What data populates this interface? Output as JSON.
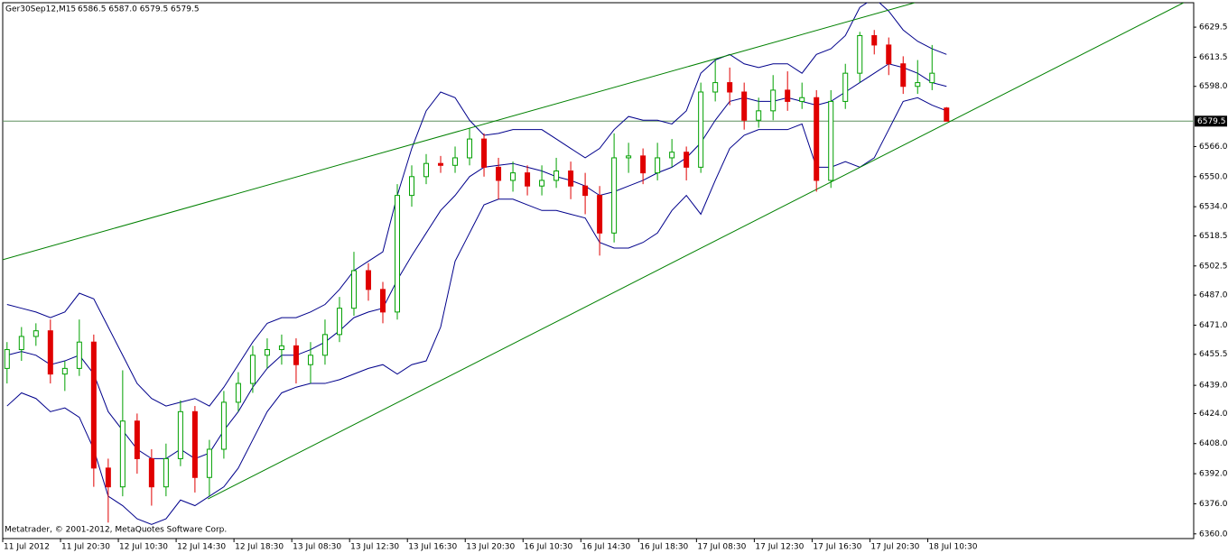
{
  "chart_data": {
    "type": "candlestick",
    "symbol": "Ger30Sep12,M15",
    "quote": "6586.5 6587.0 6579.5 6579.5",
    "footer": "Metatrader, © 2001-2012, MetaQuotes Software Corp.",
    "xlim": [
      -0.3,
      82.1
    ],
    "ylim": [
      6357.5,
      6642.5
    ],
    "open": [
      6448,
      6458,
      6465,
      6468,
      6445,
      6448,
      6462,
      6395,
      6385,
      6420,
      6400,
      6385,
      6400,
      6425,
      6390,
      6405,
      6430,
      6440,
      6455,
      6458,
      6460,
      6450,
      6455,
      6466,
      6480,
      6500,
      6490,
      6478,
      6540,
      6550,
      6557,
      6556,
      6560,
      6570,
      6555,
      6548,
      6552,
      6545,
      6548,
      6553,
      6545,
      6540,
      6520,
      6560,
      6561,
      6552,
      6560,
      6563,
      6555,
      6595,
      6600,
      6595,
      6580,
      6585,
      6596,
      6590,
      6592,
      6548,
      6590,
      6605,
      6625,
      6620,
      6610,
      6598,
      6600,
      6586.5
    ],
    "high": [
      6462,
      6470,
      6472,
      6474,
      6452,
      6474,
      6466,
      6400,
      6447,
      6424,
      6405,
      6408,
      6431,
      6428,
      6410,
      6436,
      6446,
      6460,
      6464,
      6466,
      6464,
      6462,
      6474,
      6486,
      6510,
      6504,
      6494,
      6546,
      6556,
      6562,
      6561,
      6566,
      6576,
      6573,
      6560,
      6558,
      6556,
      6556,
      6560,
      6558,
      6552,
      6545,
      6573,
      6568,
      6565,
      6568,
      6570,
      6566,
      6600,
      6612,
      6608,
      6600,
      6592,
      6604,
      6606,
      6600,
      6596,
      6596,
      6610,
      6627,
      6628,
      6624,
      6614,
      6612,
      6620,
      6587
    ],
    "low": [
      6440,
      6452,
      6460,
      6440,
      6436,
      6444,
      6385,
      6366,
      6380,
      6392,
      6375,
      6380,
      6396,
      6382,
      6380,
      6400,
      6425,
      6435,
      6448,
      6450,
      6440,
      6440,
      6450,
      6462,
      6476,
      6484,
      6472,
      6474,
      6534,
      6546,
      6552,
      6552,
      6556,
      6550,
      6538,
      6542,
      6540,
      6540,
      6544,
      6538,
      6530,
      6508,
      6515,
      6552,
      6546,
      6548,
      6555,
      6548,
      6552,
      6590,
      6588,
      6575,
      6576,
      6580,
      6585,
      6586,
      6542,
      6544,
      6586,
      6600,
      6615,
      6604,
      6594,
      6594,
      6596,
      6579.5
    ],
    "close": [
      6458,
      6465,
      6468,
      6445,
      6448,
      6462,
      6395,
      6385,
      6420,
      6400,
      6385,
      6400,
      6425,
      6390,
      6405,
      6430,
      6440,
      6455,
      6458,
      6460,
      6450,
      6455,
      6466,
      6480,
      6500,
      6490,
      6478,
      6540,
      6550,
      6557,
      6556,
      6560,
      6570,
      6555,
      6548,
      6552,
      6545,
      6548,
      6553,
      6545,
      6540,
      6520,
      6560,
      6561,
      6552,
      6560,
      6563,
      6555,
      6595,
      6600,
      6595,
      6580,
      6585,
      6596,
      6590,
      6592,
      6548,
      6590,
      6605,
      6625,
      6620,
      6610,
      6598,
      6600,
      6605,
      6579.5
    ],
    "up_color": "#00a000",
    "down_color": "#e00000",
    "series": [
      {
        "color": "#00008b",
        "values": [
          6482,
          6480,
          6478,
          6475,
          6478,
          6488,
          6485,
          6470,
          6455,
          6440,
          6432,
          6428,
          6430,
          6432,
          6428,
          6438,
          6450,
          6462,
          6472,
          6475,
          6475,
          6478,
          6482,
          6490,
          6500,
          6505,
          6510,
          6540,
          6565,
          6585,
          6595,
          6592,
          6580,
          6572,
          6573,
          6575,
          6575,
          6575,
          6570,
          6565,
          6560,
          6565,
          6575,
          6582,
          6580,
          6580,
          6578,
          6585,
          6605,
          6612,
          6615,
          6610,
          6608,
          6610,
          6610,
          6605,
          6615,
          6618,
          6625,
          6640,
          6645,
          6638,
          6628,
          6622,
          6618,
          6615
        ]
      },
      {
        "color": "#00008b",
        "values": [
          6455,
          6457,
          6455,
          6450,
          6452,
          6455,
          6445,
          6425,
          6415,
          6405,
          6400,
          6400,
          6405,
          6400,
          6403,
          6415,
          6425,
          6438,
          6448,
          6455,
          6455,
          6458,
          6462,
          6468,
          6475,
          6478,
          6480,
          6495,
          6508,
          6520,
          6532,
          6540,
          6550,
          6555,
          6556,
          6557,
          6555,
          6553,
          6550,
          6548,
          6545,
          6540,
          6542,
          6545,
          6548,
          6552,
          6555,
          6560,
          6568,
          6580,
          6590,
          6592,
          6590,
          6590,
          6592,
          6590,
          6588,
          6590,
          6595,
          6600,
          6605,
          6610,
          6608,
          6605,
          6600,
          6598
        ]
      },
      {
        "color": "#00008b",
        "values": [
          6428,
          6435,
          6432,
          6425,
          6427,
          6422,
          6405,
          6380,
          6375,
          6368,
          6365,
          6368,
          6378,
          6375,
          6380,
          6385,
          6395,
          6410,
          6425,
          6435,
          6438,
          6440,
          6440,
          6442,
          6445,
          6448,
          6450,
          6445,
          6450,
          6452,
          6470,
          6505,
          6520,
          6535,
          6538,
          6538,
          6535,
          6532,
          6532,
          6530,
          6528,
          6515,
          6512,
          6512,
          6515,
          6520,
          6532,
          6540,
          6530,
          6548,
          6565,
          6572,
          6575,
          6575,
          6575,
          6578,
          6555,
          6555,
          6558,
          6555,
          6560,
          6575,
          6590,
          6592,
          6588,
          6585
        ]
      }
    ],
    "trendlines": [
      {
        "color": "#008000",
        "x": [
          -0.3,
          62.8
        ],
        "values": [
          6505.8,
          6642.5
        ]
      },
      {
        "color": "#008000",
        "x": [
          13.9,
          81.4
        ],
        "values": [
          6378.6,
          6642.5
        ]
      }
    ],
    "price_line": 6579.5,
    "yticks": [
      {
        "value": 6360,
        "label": "6360.0"
      },
      {
        "value": 6376,
        "label": "6376.0"
      },
      {
        "value": 6392,
        "label": "6392.0"
      },
      {
        "value": 6408,
        "label": "6408.0"
      },
      {
        "value": 6424,
        "label": "6424.0"
      },
      {
        "value": 6439,
        "label": "6439.0"
      },
      6455.5,
      {
        "value": 6471,
        "label": "6471.0"
      },
      {
        "value": 6487,
        "label": "6487.0"
      },
      6502.5,
      6518.5,
      {
        "value": 6534,
        "label": "6534.0"
      },
      {
        "value": 6550,
        "label": "6550.0"
      },
      {
        "value": 6566,
        "label": "6566.0"
      },
      {
        "value": 6598,
        "label": "6598.0"
      },
      6613.5,
      6629.5
    ],
    "xticks": [
      {
        "value": -0.3,
        "label": "11 Jul 2012"
      },
      {
        "value": 3.7,
        "label": "11 Jul 20:30"
      },
      {
        "value": 7.7,
        "label": "12 Jul 10:30"
      },
      {
        "value": 11.7,
        "label": "12 Jul 14:30"
      },
      {
        "value": 15.7,
        "label": "12 Jul 18:30"
      },
      {
        "value": 19.7,
        "label": "13 Jul 08:30"
      },
      {
        "value": 23.7,
        "label": "13 Jul 12:30"
      },
      {
        "value": 27.7,
        "label": "13 Jul 16:30"
      },
      {
        "value": 31.7,
        "label": "13 Jul 20:30"
      },
      {
        "value": 35.7,
        "label": "16 Jul 10:30"
      },
      {
        "value": 39.7,
        "label": "16 Jul 14:30"
      },
      {
        "value": 43.7,
        "label": "16 Jul 18:30"
      },
      {
        "value": 47.7,
        "label": "17 Jul 08:30"
      },
      {
        "value": 51.7,
        "label": "17 Jul 12:30"
      },
      {
        "value": 55.7,
        "label": "17 Jul 16:30"
      },
      {
        "value": 59.7,
        "label": "17 Jul 20:30"
      },
      {
        "value": 63.7,
        "label": "18 Jul 10:30"
      }
    ]
  }
}
